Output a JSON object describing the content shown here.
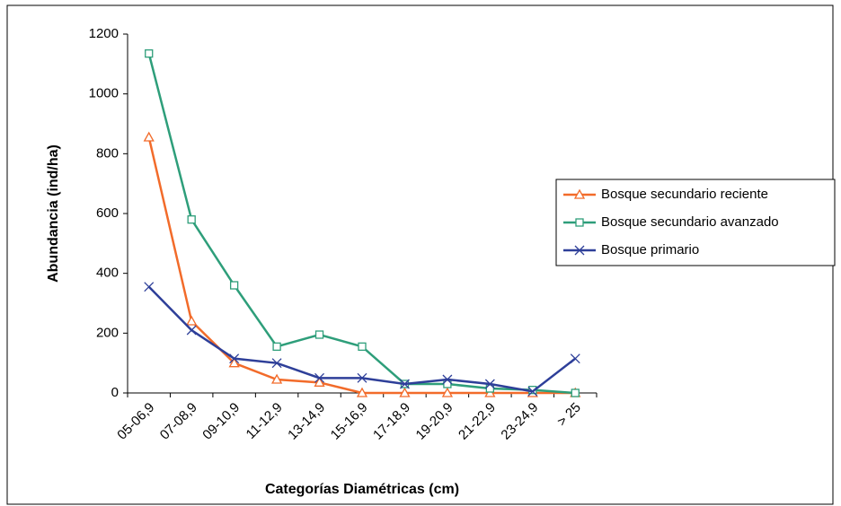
{
  "chart_data": {
    "type": "line",
    "x_label": "Categorías Diamétricas (cm)",
    "y_label": "Abundancia (ind/ha)",
    "categories": [
      "05-06,9",
      "07-08,9",
      "09-10,9",
      "11-12,9",
      "13-14,9",
      "15-16,9",
      "17-18,9",
      "19-20,9",
      "21-22,9",
      "23-24,9",
      "> 25"
    ],
    "series": [
      {
        "name": "Bosque secundario reciente",
        "color": "#f26b2a",
        "marker": "triangle",
        "values": [
          855,
          240,
          100,
          45,
          35,
          0,
          0,
          0,
          0,
          0,
          0
        ]
      },
      {
        "name": "Bosque secundario avanzado",
        "color": "#2e9e7a",
        "marker": "square",
        "values": [
          1135,
          580,
          360,
          155,
          195,
          155,
          30,
          30,
          15,
          10,
          0
        ]
      },
      {
        "name": "Bosque primario",
        "color": "#2e3f99",
        "marker": "x",
        "values": [
          355,
          210,
          115,
          100,
          50,
          50,
          30,
          45,
          30,
          5,
          115
        ]
      }
    ],
    "ylim": [
      0,
      1200
    ],
    "yticks": [
      0,
      200,
      400,
      600,
      800,
      1000,
      1200
    ],
    "grid": false,
    "legend": "right"
  }
}
